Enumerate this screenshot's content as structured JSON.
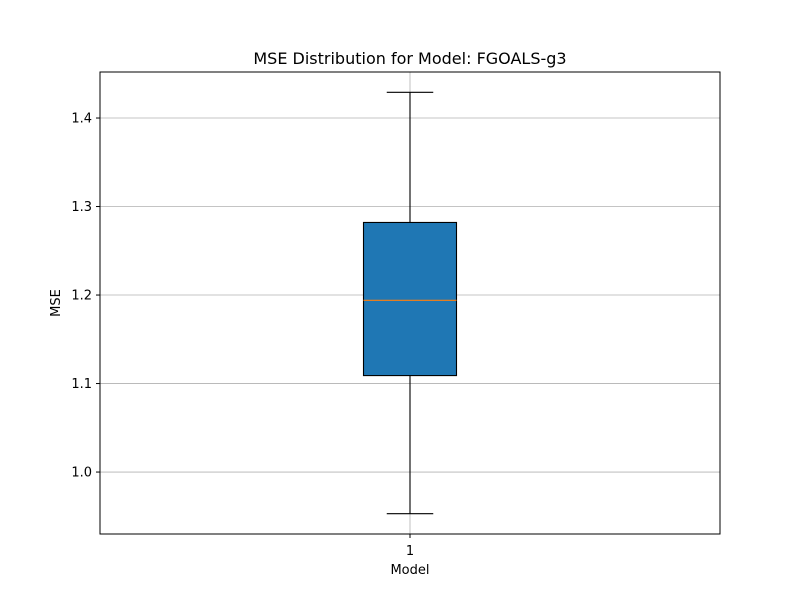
{
  "chart_data": {
    "type": "box",
    "title": "MSE Distribution for Model: FGOALS-g3",
    "xlabel": "Model",
    "ylabel": "MSE",
    "categories": [
      "1"
    ],
    "boxes": [
      {
        "category": "1",
        "whisker_low": 0.953,
        "q1": 1.109,
        "median": 1.194,
        "q3": 1.282,
        "whisker_high": 1.429
      }
    ],
    "ylim": [
      0.93,
      1.452
    ],
    "yticks": [
      1.0,
      1.1,
      1.2,
      1.3,
      1.4
    ],
    "ytick_labels": [
      "1.0",
      "1.1",
      "1.2",
      "1.3",
      "1.4"
    ],
    "grid": true,
    "colors": {
      "box_fill": "#1f77b4",
      "median": "#ff7f0e",
      "grid": "#b0b0b0",
      "axes": "#000000"
    }
  }
}
